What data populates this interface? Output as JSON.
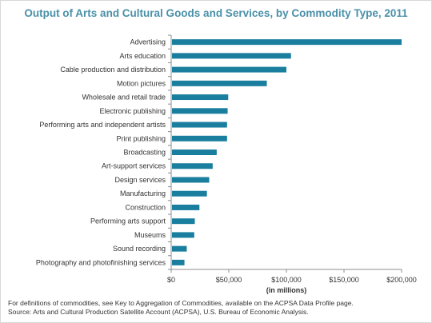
{
  "chart_data": {
    "type": "bar",
    "orientation": "horizontal",
    "title": "Output of Arts and Cultural Goods and Services, by Commodity Type, 2011",
    "xlabel": "(in millions)",
    "ylabel": "",
    "xlim": [
      0,
      200000
    ],
    "x_ticks": [
      0,
      50000,
      100000,
      150000,
      200000
    ],
    "x_tick_labels": [
      "$0",
      "$50,000",
      "$100,000",
      "$150,000",
      "$200,000"
    ],
    "grid": false,
    "legend": "none",
    "bar_color": "#1a7f9e",
    "categories": [
      "Advertising",
      "Arts education",
      "Cable production and distribution",
      "Motion pictures",
      "Wholesale and retail trade",
      "Electronic publishing",
      "Performing arts and independent artists",
      "Print publishing",
      "Broadcasting",
      "Art-support services",
      "Design services",
      "Manufacturing",
      "Construction",
      "Performing arts support",
      "Museums",
      "Sound recording",
      "Photography and photofinishing services"
    ],
    "values": [
      200000,
      104000,
      100000,
      83000,
      49500,
      49000,
      48500,
      48500,
      39500,
      36000,
      33000,
      31000,
      24500,
      20500,
      20000,
      13500,
      11500
    ]
  },
  "footnotes": {
    "definitions": "For definitions of commodities, see Key to Aggregation of Commodities, available on the ACPSA Data Profile page.",
    "source": "Source: Arts and Cultural Production Satellite Account (ACPSA), U.S. Bureau of Economic Analysis."
  }
}
